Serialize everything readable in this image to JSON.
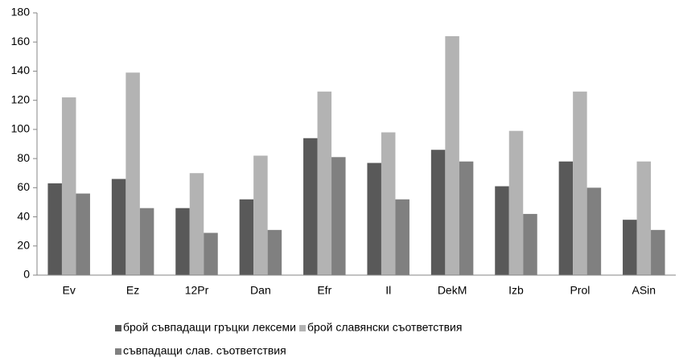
{
  "chart_data": {
    "type": "bar",
    "categories": [
      "Ev",
      "Ez",
      "12Pr",
      "Dan",
      "Efr",
      "Il",
      "DekM",
      "Izb",
      "Prol",
      "ASin"
    ],
    "series": [
      {
        "name": "брой съвпадащи гръцки лексеми",
        "color": "#595959",
        "values": [
          63,
          66,
          46,
          52,
          94,
          77,
          86,
          61,
          78,
          38
        ]
      },
      {
        "name": "брой славянски съответствия",
        "color": "#b3b3b3",
        "values": [
          122,
          139,
          70,
          82,
          126,
          98,
          164,
          99,
          126,
          78
        ]
      },
      {
        "name": "съвпадащи слав. съответствия",
        "color": "#808080",
        "values": [
          56,
          46,
          29,
          31,
          81,
          52,
          78,
          42,
          60,
          31
        ]
      }
    ],
    "ylim": [
      0,
      180
    ],
    "yticks": [
      0,
      20,
      40,
      60,
      80,
      100,
      120,
      140,
      160,
      180
    ],
    "grid": false
  }
}
